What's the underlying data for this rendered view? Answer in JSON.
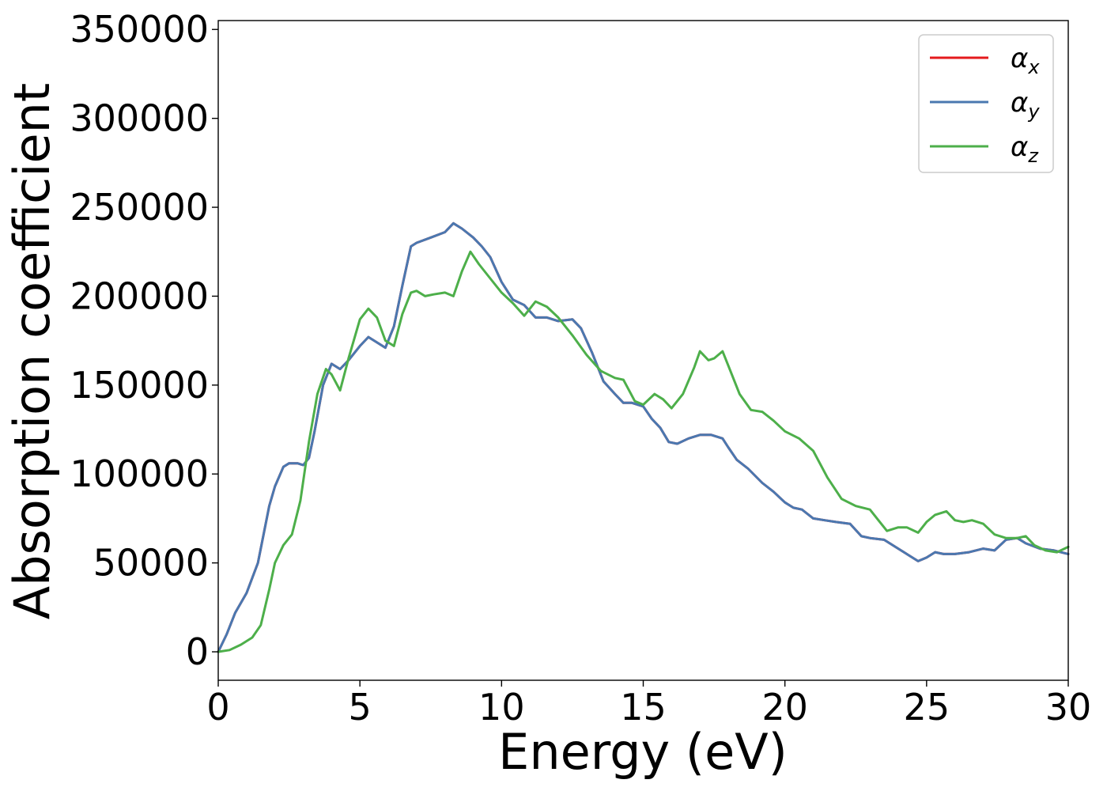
{
  "chart_data": {
    "type": "line",
    "xlabel": "Energy (eV)",
    "ylabel": "Absorption coefficient",
    "xlim": [
      0,
      30
    ],
    "ylim": [
      -16000,
      355000
    ],
    "xticks": [
      0,
      5,
      10,
      15,
      20,
      25,
      30
    ],
    "xtick_labels": [
      "0",
      "5",
      "10",
      "15",
      "20",
      "25",
      "30"
    ],
    "yticks": [
      0,
      50000,
      100000,
      150000,
      200000,
      250000,
      300000,
      350000
    ],
    "ytick_labels": [
      "0",
      "50000",
      "100000",
      "150000",
      "200000",
      "250000",
      "300000",
      "350000"
    ],
    "grid": false,
    "legend": {
      "position": "top-right",
      "entries": [
        {
          "symbol": "α",
          "sub": "x",
          "color": "#e41a1c"
        },
        {
          "symbol": "α",
          "sub": "y",
          "color": "#4a78b0"
        },
        {
          "symbol": "α",
          "sub": "z",
          "color": "#4daf4a"
        }
      ]
    },
    "series": [
      {
        "legend_index": 0,
        "color": "#e41a1c",
        "x": [
          0,
          0.3,
          0.6,
          1.0,
          1.4,
          1.8,
          2.0,
          2.3,
          2.5,
          2.8,
          3.0,
          3.2,
          3.4,
          3.7,
          4.0,
          4.3,
          4.6,
          5.0,
          5.3,
          5.6,
          5.9,
          6.2,
          6.5,
          6.8,
          7.0,
          7.5,
          8.0,
          8.3,
          8.6,
          9.0,
          9.3,
          9.6,
          10.0,
          10.4,
          10.8,
          11.2,
          11.6,
          12.0,
          12.5,
          12.8,
          13.2,
          13.6,
          14.0,
          14.3,
          14.6,
          15.0,
          15.3,
          15.6,
          15.9,
          16.2,
          16.6,
          17.0,
          17.4,
          17.8,
          18.0,
          18.3,
          18.7,
          19.2,
          19.6,
          20.0,
          20.3,
          20.6,
          21.0,
          21.4,
          21.8,
          22.3,
          22.7,
          23.0,
          23.5,
          24.0,
          24.4,
          24.7,
          25.0,
          25.3,
          25.6,
          26.0,
          26.5,
          27.0,
          27.4,
          27.8,
          28.2,
          28.5,
          29.0,
          29.5,
          30.0
        ],
        "y": [
          0,
          10000,
          22000,
          33000,
          50000,
          82000,
          93000,
          104000,
          106000,
          106000,
          105000,
          109000,
          124000,
          150000,
          162000,
          159000,
          164000,
          172000,
          177000,
          174000,
          171000,
          183000,
          206000,
          228000,
          230000,
          233000,
          236000,
          241000,
          238000,
          233000,
          228000,
          222000,
          208000,
          198000,
          195000,
          188000,
          188000,
          186000,
          187000,
          182000,
          168000,
          152000,
          145000,
          140000,
          140000,
          138000,
          131000,
          126000,
          118000,
          117000,
          120000,
          122000,
          122000,
          120000,
          115000,
          108000,
          103000,
          95000,
          90000,
          84000,
          81000,
          80000,
          75000,
          74000,
          73000,
          72000,
          65000,
          64000,
          63000,
          58000,
          54000,
          51000,
          53000,
          56000,
          55000,
          55000,
          56000,
          58000,
          57000,
          63000,
          64000,
          61000,
          58000,
          57000,
          55000
        ]
      },
      {
        "legend_index": 1,
        "color": "#4a78b0",
        "x": [
          0,
          0.3,
          0.6,
          1.0,
          1.4,
          1.8,
          2.0,
          2.3,
          2.5,
          2.8,
          3.0,
          3.2,
          3.4,
          3.7,
          4.0,
          4.3,
          4.6,
          5.0,
          5.3,
          5.6,
          5.9,
          6.2,
          6.5,
          6.8,
          7.0,
          7.5,
          8.0,
          8.3,
          8.6,
          9.0,
          9.3,
          9.6,
          10.0,
          10.4,
          10.8,
          11.2,
          11.6,
          12.0,
          12.5,
          12.8,
          13.2,
          13.6,
          14.0,
          14.3,
          14.6,
          15.0,
          15.3,
          15.6,
          15.9,
          16.2,
          16.6,
          17.0,
          17.4,
          17.8,
          18.0,
          18.3,
          18.7,
          19.2,
          19.6,
          20.0,
          20.3,
          20.6,
          21.0,
          21.4,
          21.8,
          22.3,
          22.7,
          23.0,
          23.5,
          24.0,
          24.4,
          24.7,
          25.0,
          25.3,
          25.6,
          26.0,
          26.5,
          27.0,
          27.4,
          27.8,
          28.2,
          28.5,
          29.0,
          29.5,
          30.0
        ],
        "y": [
          0,
          10000,
          22000,
          33000,
          50000,
          82000,
          93000,
          104000,
          106000,
          106000,
          105000,
          109000,
          124000,
          150000,
          162000,
          159000,
          164000,
          172000,
          177000,
          174000,
          171000,
          183000,
          206000,
          228000,
          230000,
          233000,
          236000,
          241000,
          238000,
          233000,
          228000,
          222000,
          208000,
          198000,
          195000,
          188000,
          188000,
          186000,
          187000,
          182000,
          168000,
          152000,
          145000,
          140000,
          140000,
          138000,
          131000,
          126000,
          118000,
          117000,
          120000,
          122000,
          122000,
          120000,
          115000,
          108000,
          103000,
          95000,
          90000,
          84000,
          81000,
          80000,
          75000,
          74000,
          73000,
          72000,
          65000,
          64000,
          63000,
          58000,
          54000,
          51000,
          53000,
          56000,
          55000,
          55000,
          56000,
          58000,
          57000,
          63000,
          64000,
          61000,
          58000,
          57000,
          55000
        ]
      },
      {
        "legend_index": 2,
        "color": "#4daf4a",
        "x": [
          0,
          0.4,
          0.8,
          1.2,
          1.5,
          1.8,
          2.0,
          2.3,
          2.6,
          2.9,
          3.2,
          3.5,
          3.8,
          4.0,
          4.3,
          4.6,
          5.0,
          5.3,
          5.6,
          5.9,
          6.2,
          6.5,
          6.8,
          7.0,
          7.3,
          7.6,
          8.0,
          8.3,
          8.6,
          8.9,
          9.2,
          9.6,
          10.0,
          10.4,
          10.8,
          11.2,
          11.6,
          12.0,
          12.5,
          13.0,
          13.5,
          14.0,
          14.3,
          14.7,
          15.0,
          15.4,
          15.7,
          16.0,
          16.4,
          16.8,
          17.0,
          17.3,
          17.5,
          17.8,
          18.0,
          18.4,
          18.8,
          19.2,
          19.6,
          20.0,
          20.5,
          21.0,
          21.5,
          22.0,
          22.5,
          23.0,
          23.3,
          23.6,
          24.0,
          24.3,
          24.7,
          25.0,
          25.3,
          25.7,
          26.0,
          26.3,
          26.6,
          27.0,
          27.4,
          27.8,
          28.2,
          28.5,
          28.8,
          29.2,
          29.6,
          30.0
        ],
        "y": [
          0,
          1000,
          4000,
          8000,
          15000,
          35000,
          50000,
          60000,
          66000,
          85000,
          118000,
          145000,
          159000,
          156000,
          147000,
          165000,
          187000,
          193000,
          188000,
          175000,
          172000,
          190000,
          202000,
          203000,
          200000,
          201000,
          202000,
          200000,
          214000,
          225000,
          218000,
          210000,
          202000,
          196000,
          189000,
          197000,
          194000,
          188000,
          178000,
          167000,
          158000,
          154000,
          153000,
          141000,
          139000,
          145000,
          142000,
          137000,
          145000,
          160000,
          169000,
          164000,
          165000,
          169000,
          161000,
          145000,
          136000,
          135000,
          130000,
          124000,
          120000,
          113000,
          98000,
          86000,
          82000,
          80000,
          74000,
          68000,
          70000,
          70000,
          67000,
          73000,
          77000,
          79000,
          74000,
          73000,
          74000,
          72000,
          66000,
          64000,
          64000,
          65000,
          60000,
          57000,
          56000,
          59000
        ]
      }
    ]
  }
}
